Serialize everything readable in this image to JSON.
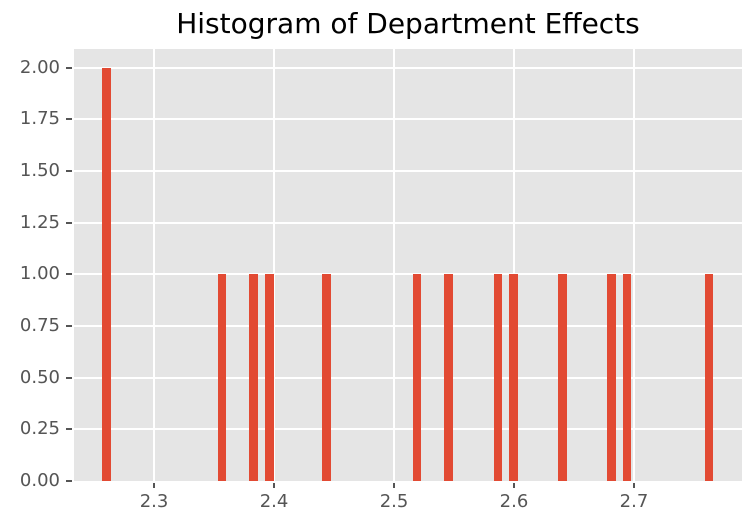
{
  "chart_data": {
    "type": "bar",
    "subtype": "histogram",
    "title": "Histogram of Department Effects",
    "xlabel": "",
    "ylabel": "",
    "bin_centers": [
      2.2604,
      2.3565,
      2.3828,
      2.3964,
      2.4436,
      2.5192,
      2.5456,
      2.5865,
      2.5994,
      2.6402,
      2.6814,
      2.6942,
      2.7623
    ],
    "counts": [
      2,
      1,
      1,
      1,
      1,
      1,
      1,
      1,
      1,
      1,
      1,
      1,
      1
    ],
    "bin_width": 0.0071,
    "xlim": [
      2.2333,
      2.79
    ],
    "ylim": [
      0,
      2.09
    ],
    "x_ticks": [
      2.3,
      2.4,
      2.5,
      2.6,
      2.7
    ],
    "x_tick_labels": [
      "2.3",
      "2.4",
      "2.5",
      "2.6",
      "2.7"
    ],
    "y_ticks": [
      0,
      0.25,
      0.5,
      0.75,
      1.0,
      1.25,
      1.5,
      1.75,
      2.0
    ],
    "y_tick_labels": [
      "0.00",
      "0.25",
      "0.50",
      "0.75",
      "1.00",
      "1.25",
      "1.50",
      "1.75",
      "2.00"
    ],
    "grid": true,
    "legend": false,
    "colors": {
      "bar": "#E24A33",
      "plot_background": "#E5E5E5",
      "figure_background": "#FFFFFF",
      "gridline": "#FFFFFF",
      "tick_label": "#555555",
      "tick_mark": "#555555",
      "title": "#000000"
    }
  }
}
